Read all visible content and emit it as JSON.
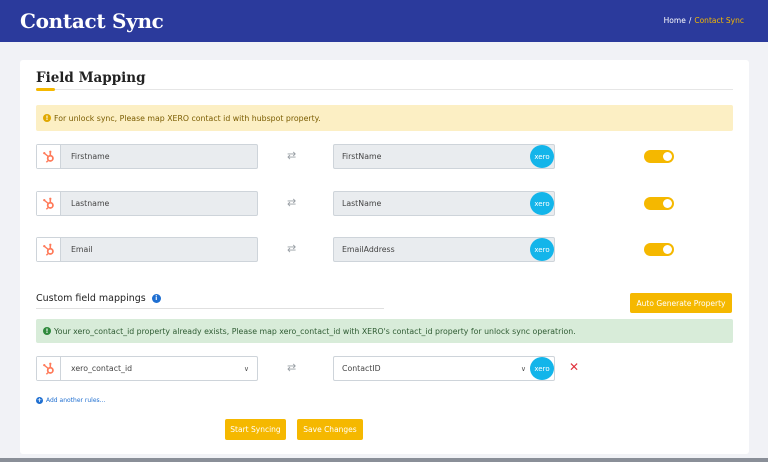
{
  "header": {
    "title": "Contact Sync",
    "breadcrumb": {
      "home": "Home",
      "separator": "/",
      "current": "Contact Sync"
    }
  },
  "field_mapping": {
    "title": "Field Mapping",
    "warning": "For unlock sync, Please map XERO contact id with hubspot property.",
    "rows": [
      {
        "hubspot": "Firstname",
        "xero": "FirstName",
        "enabled": true
      },
      {
        "hubspot": "Lastname",
        "xero": "LastName",
        "enabled": true
      },
      {
        "hubspot": "Email",
        "xero": "EmailAddress",
        "enabled": true
      }
    ]
  },
  "custom": {
    "title": "Custom field mappings",
    "auto_button": "Auto Generate Property",
    "success": "Your xero_contact_id property already exists, Please map xero_contact_id with XERO's contact_id property for unlock sync operatrion.",
    "row": {
      "hubspot": "xero_contact_id",
      "xero": "ContactID"
    },
    "add_rule": "Add another rules..."
  },
  "actions": {
    "start": "Start Syncing",
    "save": "Save Changes"
  },
  "labels": {
    "xero_logo": "xero",
    "swap_glyph": "⇄",
    "caret": "∨",
    "remove_glyph": "✕",
    "info_glyph": "i",
    "warn_glyph": "!",
    "ok_glyph": "!",
    "plus_glyph": "+"
  },
  "colors": {
    "header": "#2b3a9c",
    "accent": "#f5b800",
    "xero": "#13b5ea",
    "hubspot": "#ff7a59"
  }
}
